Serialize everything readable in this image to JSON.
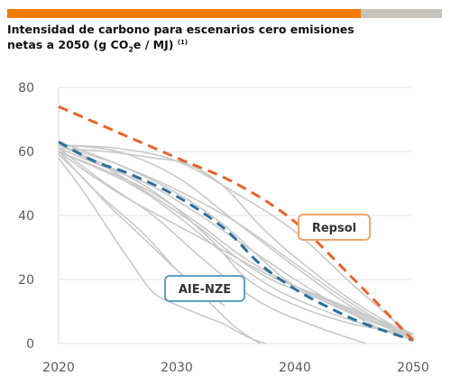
{
  "title": {
    "line1": "Intensidad de carbono para escenarios cero emisiones",
    "line2_pre": "netas a 2050 (g CO",
    "line2_sub": "2",
    "line2_mid": "e / MJ)",
    "line2_sup": "(1)"
  },
  "colors": {
    "accent": "#f07d00",
    "bar_grey": "#c6c2bc",
    "repsol": "#e8632a",
    "aie_nze": "#2a6f9e",
    "scenario": "#c9c9c9",
    "axis_text": "#5a5a5a"
  },
  "chart_data": {
    "type": "line",
    "xlim": [
      2020,
      2050
    ],
    "ylim": [
      0,
      80
    ],
    "xticks": [
      "2020",
      "2030",
      "2040",
      "2050"
    ],
    "yticks": [
      "0",
      "20",
      "40",
      "60",
      "80"
    ],
    "grid": true,
    "annotations": [
      {
        "text": "Repsol",
        "series": "repsol"
      },
      {
        "text": "AIE-NZE",
        "series": "aie"
      }
    ],
    "series": [
      {
        "id": "repsol",
        "style": "dashed",
        "x": [
          2020,
          2025,
          2030,
          2035,
          2040,
          2045,
          2050
        ],
        "y": [
          74,
          66,
          58,
          50,
          38,
          20,
          1
        ]
      },
      {
        "id": "aie",
        "style": "dashed",
        "x": [
          2020,
          2023,
          2026,
          2030,
          2034,
          2037,
          2040,
          2043,
          2046,
          2050
        ],
        "y": [
          63,
          57,
          53,
          46,
          36,
          25,
          17,
          11,
          6,
          1
        ]
      },
      {
        "id": "scenario",
        "x": [
          2020,
          2025,
          2030,
          2035,
          2040,
          2045,
          2050
        ],
        "y": [
          62,
          61,
          57,
          47,
          35,
          18,
          2
        ]
      },
      {
        "id": "scenario",
        "x": [
          2020,
          2024,
          2028,
          2031,
          2034,
          2037,
          2040,
          2045,
          2050
        ],
        "y": [
          61,
          60,
          58,
          56,
          49,
          37,
          27,
          13,
          2
        ]
      },
      {
        "id": "scenario",
        "x": [
          2020,
          2025,
          2030,
          2034,
          2037,
          2040,
          2045,
          2050
        ],
        "y": [
          63,
          56,
          47,
          37,
          27,
          18,
          9,
          2
        ]
      },
      {
        "id": "scenario",
        "x": [
          2020,
          2024,
          2028,
          2032,
          2036,
          2040,
          2045,
          2050
        ],
        "y": [
          60,
          54,
          47,
          37,
          26,
          18,
          10,
          3
        ]
      },
      {
        "id": "scenario",
        "x": [
          2020,
          2024,
          2028,
          2032,
          2035,
          2038,
          2042,
          2046,
          2050
        ],
        "y": [
          62,
          55,
          46,
          36,
          27,
          20,
          14,
          8,
          2
        ]
      },
      {
        "id": "scenario",
        "x": [
          2020,
          2023,
          2026,
          2030,
          2034,
          2038,
          2042,
          2046,
          2050
        ],
        "y": [
          60,
          52,
          45,
          37,
          29,
          21,
          15,
          9,
          3
        ]
      },
      {
        "id": "scenario",
        "x": [
          2020,
          2025,
          2030,
          2035,
          2040,
          2045,
          2050
        ],
        "y": [
          62,
          56,
          48,
          38,
          25,
          12,
          1
        ]
      },
      {
        "id": "scenario",
        "x": [
          2020,
          2024,
          2028,
          2032,
          2036,
          2040,
          2044,
          2047,
          2050
        ],
        "y": [
          61,
          55,
          49,
          40,
          30,
          20,
          11,
          5,
          1
        ]
      },
      {
        "id": "scenario",
        "x": [
          2020,
          2026,
          2030,
          2034,
          2037,
          2040,
          2045,
          2050
        ],
        "y": [
          60,
          50,
          40,
          28,
          20,
          14,
          7,
          2
        ]
      },
      {
        "id": "scenario",
        "x": [
          2020,
          2025,
          2029,
          2033,
          2036,
          2040,
          2045,
          2050
        ],
        "y": [
          62,
          54,
          45,
          32,
          20,
          12,
          6,
          3
        ]
      },
      {
        "id": "scenario",
        "x": [
          2020,
          2024,
          2028,
          2032,
          2035,
          2038,
          2042,
          2046
        ],
        "y": [
          61,
          50,
          40,
          27,
          18,
          11,
          5,
          0
        ]
      },
      {
        "id": "scenario",
        "x": [
          2020,
          2023,
          2027,
          2030,
          2033,
          2035,
          2037
        ],
        "y": [
          60,
          48,
          35,
          23,
          12,
          5,
          0
        ]
      },
      {
        "id": "scenario",
        "x": [
          2020,
          2022,
          2024,
          2026,
          2028,
          2030,
          2032,
          2034
        ],
        "y": [
          59,
          52,
          44,
          37,
          30,
          23,
          17,
          12
        ]
      },
      {
        "id": "scenario",
        "x": [
          2020,
          2022,
          2024,
          2026,
          2028,
          2030
        ],
        "y": [
          58,
          48,
          37,
          26,
          16,
          12
        ]
      },
      {
        "id": "scenario",
        "x": [
          2030,
          2032,
          2034,
          2036,
          2037.5
        ],
        "y": [
          12,
          9,
          6,
          2,
          0
        ]
      },
      {
        "id": "scenario",
        "x": [
          2020,
          2025,
          2030,
          2035,
          2040,
          2045,
          2050
        ],
        "y": [
          62,
          60,
          52,
          38,
          24,
          11,
          2
        ]
      }
    ]
  }
}
